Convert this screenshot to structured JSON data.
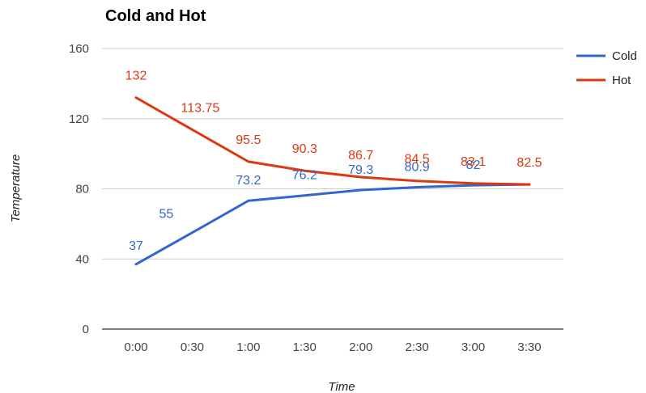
{
  "chart_data": {
    "type": "line",
    "title": "Cold and Hot",
    "xlabel": "Time",
    "ylabel": "Temperature",
    "categories": [
      "0:00",
      "0:30",
      "1:00",
      "1:30",
      "2:00",
      "2:30",
      "3:00",
      "3:30"
    ],
    "yticks": [
      "0",
      "40",
      "80",
      "120",
      "160"
    ],
    "ylim": [
      0,
      160
    ],
    "grid": true,
    "legend_position": "right",
    "series": [
      {
        "name": "Cold",
        "color": "#3366cc",
        "values": [
          37,
          55,
          73.2,
          76.2,
          79.3,
          80.9,
          82,
          82.5
        ],
        "labels": [
          "37",
          "55",
          "73.2",
          "76.2",
          "79.3",
          "80.9",
          "82",
          ""
        ]
      },
      {
        "name": "Hot",
        "color": "#dc3912",
        "values": [
          132,
          113.75,
          95.5,
          90.3,
          86.7,
          84.5,
          83.1,
          82.5
        ],
        "labels": [
          "132",
          "113.75",
          "95.5",
          "90.3",
          "86.7",
          "84.5",
          "83.1",
          "82.5"
        ]
      }
    ]
  }
}
